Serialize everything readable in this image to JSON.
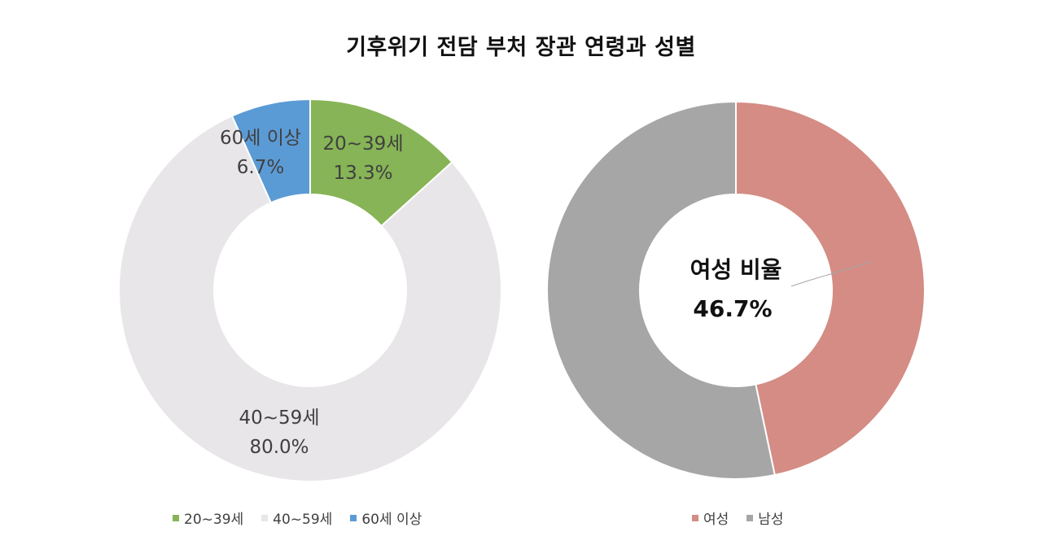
{
  "title": "기후위기 전담 부처 장관 연령과 성별",
  "chart_data": [
    {
      "type": "pie",
      "donut": true,
      "categories": [
        "20~39세",
        "40~59세",
        "60세 이상"
      ],
      "values": [
        13.3,
        80.0,
        6.7
      ],
      "value_labels": [
        "13.3%",
        "80.0%",
        "6.7%"
      ],
      "colors": [
        "#86B456",
        "#E8E6E8",
        "#5B9BD5"
      ],
      "legend": {
        "placement": "bottom",
        "entries": [
          "20~39세",
          "40~59세",
          "60세 이상"
        ]
      }
    },
    {
      "type": "pie",
      "donut": true,
      "categories": [
        "여성",
        "남성"
      ],
      "values": [
        46.7,
        53.3
      ],
      "colors": [
        "#D48C84",
        "#A6A6A6"
      ],
      "center_label": {
        "line1": "여성 비율",
        "line2": "46.7%"
      },
      "legend": {
        "placement": "bottom",
        "entries": [
          "여성",
          "남성"
        ]
      }
    }
  ]
}
